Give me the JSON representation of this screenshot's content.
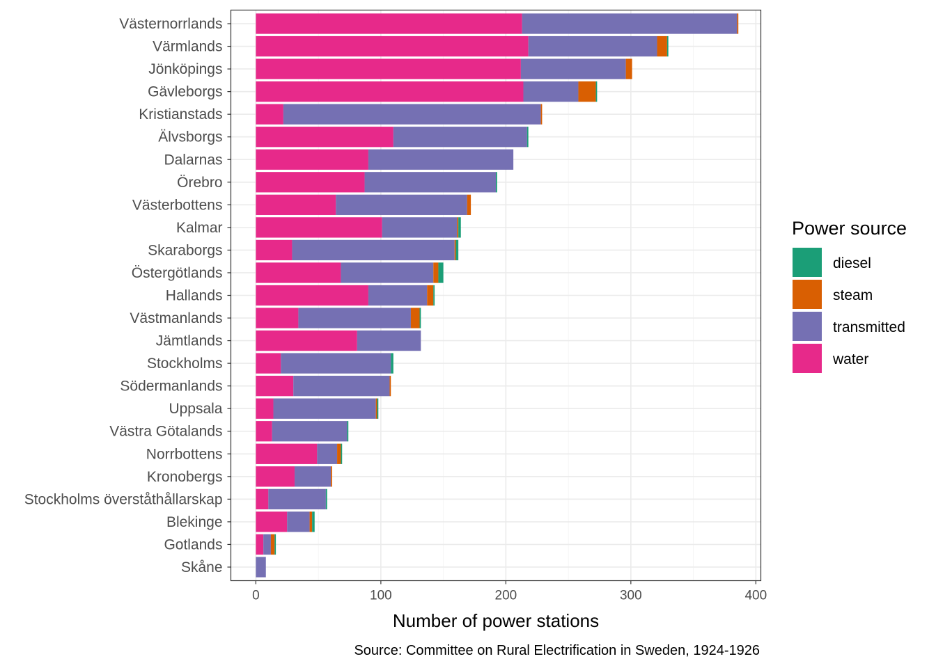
{
  "chart_data": {
    "type": "bar",
    "orientation": "horizontal",
    "stacked": true,
    "xlabel": "Number of power stations",
    "caption": "Source: Committee on Rural Electrification in Sweden, 1924-1926",
    "xlim": [
      -20,
      404
    ],
    "x_ticks": [
      0,
      100,
      200,
      300,
      400
    ],
    "grid": true,
    "legend": {
      "title": "Power source",
      "placement": "right",
      "entries": [
        "diesel",
        "steam",
        "transmitted",
        "water"
      ]
    },
    "colors": {
      "water": "#E7298A",
      "transmitted": "#7570B3",
      "steam": "#D95F02",
      "diesel": "#1B9E77",
      "panel_border": "#333333",
      "grid_major": "#EBEBEB",
      "grid_minor": "#F5F5F5"
    },
    "stack_order": [
      "water",
      "transmitted",
      "steam",
      "diesel"
    ],
    "categories": [
      "Västernorrlands",
      "Värmlands",
      "Jönköpings",
      "Gävleborgs",
      "Kristianstads",
      "Älvsborgs",
      "Dalarnas",
      "Örebro",
      "Västerbottens",
      "Kalmar",
      "Skaraborgs",
      "Östergötlands",
      "Hallands",
      "Västmanlands",
      "Jämtlands",
      "Stockholms",
      "Södermanlands",
      "Uppsala",
      "Västra Götalands",
      "Norrbottens",
      "Kronobergs",
      "Stockholms överståthållarskap",
      "Blekinge",
      "Gotlands",
      "Skåne"
    ],
    "series": [
      {
        "name": "water",
        "values": [
          213,
          218,
          212,
          214,
          22,
          110,
          90,
          87,
          64,
          101,
          29,
          68,
          90,
          34,
          81,
          20,
          30,
          14,
          13,
          49,
          31,
          10,
          25,
          6,
          0
        ]
      },
      {
        "name": "transmitted",
        "values": [
          172,
          103,
          84,
          44,
          206,
          107,
          116,
          105,
          105,
          60,
          130,
          74,
          47,
          90,
          51,
          88,
          77,
          82,
          60,
          16,
          29,
          46,
          18,
          6,
          8
        ]
      },
      {
        "name": "steam",
        "values": [
          1,
          8,
          5,
          14,
          1,
          0,
          0,
          0,
          3,
          1,
          1,
          4,
          5,
          7,
          0,
          0,
          1,
          1,
          0,
          3,
          1,
          0,
          2,
          3,
          0
        ]
      },
      {
        "name": "diesel",
        "values": [
          0,
          1,
          0,
          1,
          0,
          1,
          0,
          1,
          0,
          2,
          2,
          4,
          1,
          1,
          0,
          2,
          0,
          1,
          1,
          1,
          0,
          1,
          2,
          1,
          0
        ]
      }
    ]
  }
}
